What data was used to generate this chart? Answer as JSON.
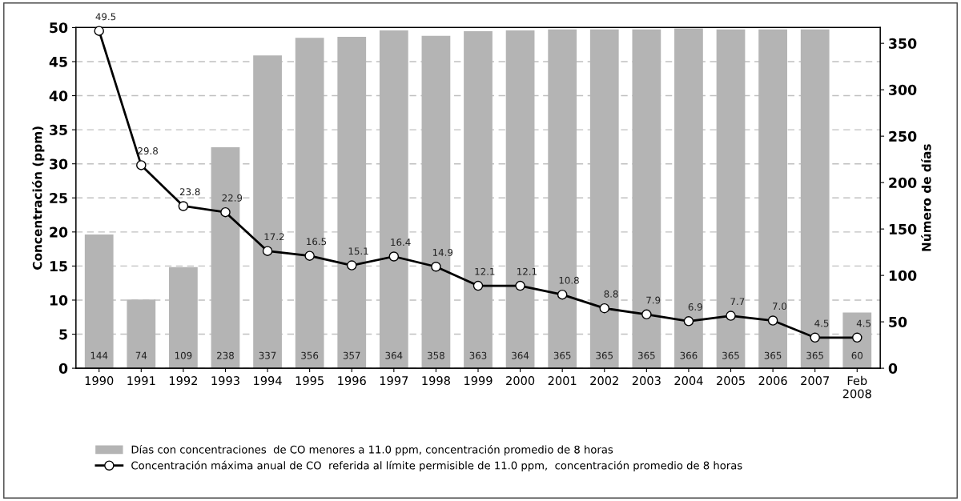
{
  "chart_data": {
    "type": "bar",
    "categories": [
      "1990",
      "1991",
      "1992",
      "1993",
      "1994",
      "1995",
      "1996",
      "1997",
      "1998",
      "1999",
      "2000",
      "2001",
      "2002",
      "2003",
      "2004",
      "2005",
      "2006",
      "2007",
      "Feb\n2008"
    ],
    "series": [
      {
        "name": "Días con concentraciones  de CO menores a 11.0 ppm, concentración promedio de 8 horas",
        "axis": "y2",
        "color": "#b4b4b4",
        "values": [
          144,
          74,
          109,
          238,
          337,
          356,
          357,
          364,
          358,
          363,
          364,
          365,
          365,
          365,
          366,
          365,
          365,
          365,
          60
        ]
      },
      {
        "name": "Concentración máxima anual de CO  referida al límite permisible de 11.0 ppm,  concentración promedio de 8 horas",
        "type": "line",
        "axis": "y",
        "color": "#000000",
        "values": [
          49.5,
          29.8,
          23.8,
          22.9,
          17.2,
          16.5,
          15.1,
          16.4,
          14.9,
          12.1,
          12.1,
          10.8,
          8.8,
          7.9,
          6.9,
          7.7,
          7.0,
          4.5,
          4.5
        ],
        "value_labels": [
          "49.5",
          "29.8",
          "23.8",
          "22.9",
          "17.2",
          "16.5",
          "15.1",
          "16.4",
          "14.9",
          "12.1",
          "12.1",
          "10.8",
          "8.8",
          "7.9",
          "6.9",
          "7.7",
          "7.0",
          "4.5",
          "4.5"
        ]
      }
    ],
    "ylabel": "Concentración (ppm)",
    "y2label": "Número de días",
    "ylim": [
      0,
      50
    ],
    "yticks": [
      0,
      5,
      10,
      15,
      20,
      25,
      30,
      35,
      40,
      45,
      50
    ],
    "y2lim": [
      0,
      367
    ],
    "y2ticks": [
      0,
      50,
      100,
      150,
      200,
      250,
      300,
      350
    ],
    "grid": "y",
    "legend": "bottom",
    "marker": "circle",
    "line_style": "solid",
    "data_labels": true
  }
}
